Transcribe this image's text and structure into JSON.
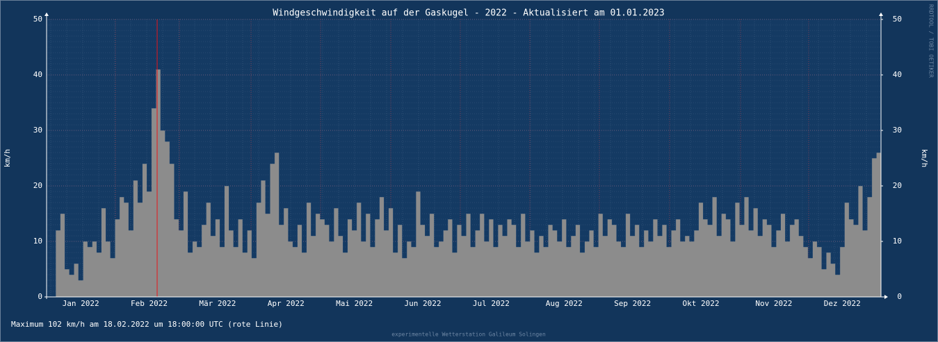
{
  "chart_data": {
    "type": "area",
    "title": "Windgeschwindigkeit auf der Gaskugel - 2022 - Aktualisiert am 01.01.2023",
    "y_label": "km/h",
    "y2_label": "km/h",
    "footer": "Maximum 102 km/h am 18.02.2022 um 18:00:00 UTC (rote Linie)",
    "credit": "experimentelle Wetterstation Galileum Solingen",
    "watermark": "RRDTOOL / TOBI OETIKER",
    "color": "#8c8c8c",
    "grid": true,
    "ylim": [
      0,
      50
    ],
    "yticks": [
      0,
      10,
      20,
      30,
      40,
      50
    ],
    "y2lim": [
      0,
      50
    ],
    "y2ticks": [
      0,
      10,
      20,
      30,
      40,
      50
    ],
    "categories": [
      null,
      null,
      null,
      null,
      null,
      null,
      null,
      "Jan 2022",
      null,
      null,
      null,
      null,
      null,
      null,
      null,
      null,
      null,
      null,
      null,
      null,
      null,
      null,
      "Feb 2022",
      null,
      null,
      null,
      null,
      null,
      null,
      null,
      null,
      null,
      null,
      null,
      null,
      null,
      null,
      "Mär 2022",
      null,
      null,
      null,
      null,
      null,
      null,
      null,
      null,
      null,
      null,
      null,
      null,
      null,
      null,
      "Apr 2022",
      null,
      null,
      null,
      null,
      null,
      null,
      null,
      null,
      null,
      null,
      null,
      null,
      null,
      null,
      "Mai 2022",
      null,
      null,
      null,
      null,
      null,
      null,
      null,
      null,
      null,
      null,
      null,
      null,
      null,
      null,
      "Jun 2022",
      null,
      null,
      null,
      null,
      null,
      null,
      null,
      null,
      null,
      null,
      null,
      null,
      null,
      null,
      "Jul 2022",
      null,
      null,
      null,
      null,
      null,
      null,
      null,
      null,
      null,
      null,
      null,
      null,
      null,
      null,
      null,
      "Aug 2022",
      null,
      null,
      null,
      null,
      null,
      null,
      null,
      null,
      null,
      null,
      null,
      null,
      null,
      null,
      "Sep 2022",
      null,
      null,
      null,
      null,
      null,
      null,
      null,
      null,
      null,
      null,
      null,
      null,
      null,
      null,
      "Okt 2022",
      null,
      null,
      null,
      null,
      null,
      null,
      null,
      null,
      null,
      null,
      null,
      null,
      null,
      null,
      null,
      "Nov 2022",
      null,
      null,
      null,
      null,
      null,
      null,
      null,
      null,
      null,
      null,
      null,
      null,
      null,
      null,
      "Dez 2022",
      null,
      null,
      null,
      null,
      null,
      null,
      null,
      null
    ],
    "values": [
      null,
      null,
      12,
      15,
      5,
      4,
      6,
      3,
      10,
      9,
      10,
      8,
      16,
      10,
      7,
      14,
      18,
      17,
      12,
      21,
      17,
      24,
      19,
      34,
      41,
      30,
      28,
      24,
      14,
      12,
      19,
      8,
      10,
      9,
      13,
      17,
      11,
      14,
      9,
      20,
      12,
      9,
      14,
      8,
      12,
      7,
      17,
      21,
      15,
      24,
      26,
      13,
      16,
      10,
      9,
      13,
      8,
      17,
      11,
      15,
      14,
      13,
      10,
      16,
      11,
      8,
      14,
      12,
      17,
      10,
      15,
      9,
      14,
      18,
      12,
      16,
      8,
      13,
      7,
      10,
      9,
      19,
      13,
      11,
      15,
      9,
      10,
      12,
      14,
      8,
      13,
      11,
      15,
      9,
      12,
      15,
      10,
      14,
      9,
      13,
      11,
      14,
      13,
      9,
      15,
      10,
      12,
      8,
      11,
      9,
      13,
      12,
      10,
      14,
      9,
      11,
      13,
      8,
      10,
      12,
      9,
      15,
      11,
      14,
      13,
      10,
      9,
      15,
      11,
      13,
      9,
      12,
      10,
      14,
      11,
      13,
      9,
      12,
      14,
      10,
      11,
      10,
      12,
      17,
      14,
      13,
      18,
      11,
      15,
      14,
      10,
      17,
      13,
      18,
      12,
      16,
      11,
      14,
      13,
      9,
      12,
      15,
      10,
      13,
      14,
      11,
      9,
      7,
      10,
      9,
      5,
      8,
      6,
      4,
      9,
      17,
      14,
      13,
      20,
      12,
      18,
      25,
      26
    ]
  }
}
